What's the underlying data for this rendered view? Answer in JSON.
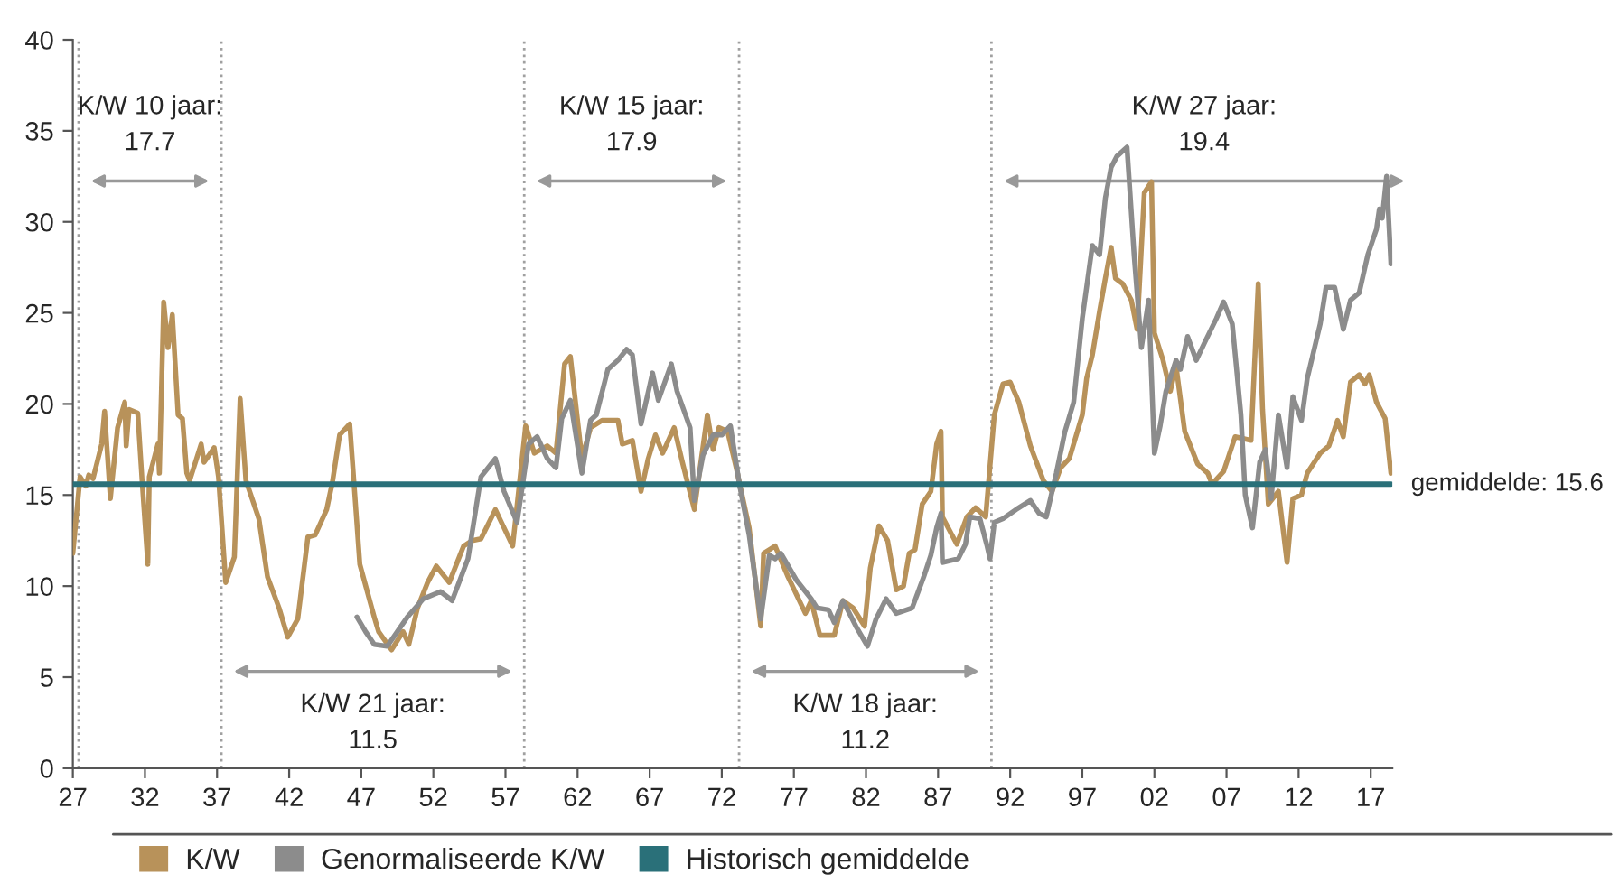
{
  "chart_data": {
    "type": "line",
    "xlim": [
      1927,
      2018.5
    ],
    "xticks": [
      {
        "value": 1927,
        "label": "27"
      },
      {
        "value": 1932,
        "label": "32"
      },
      {
        "value": 1937,
        "label": "37"
      },
      {
        "value": 1942,
        "label": "42"
      },
      {
        "value": 1947,
        "label": "47"
      },
      {
        "value": 1952,
        "label": "52"
      },
      {
        "value": 1957,
        "label": "57"
      },
      {
        "value": 1962,
        "label": "62"
      },
      {
        "value": 1967,
        "label": "67"
      },
      {
        "value": 1972,
        "label": "72"
      },
      {
        "value": 1977,
        "label": "77"
      },
      {
        "value": 1982,
        "label": "82"
      },
      {
        "value": 1987,
        "label": "87"
      },
      {
        "value": 1992,
        "label": "92"
      },
      {
        "value": 1997,
        "label": "97"
      },
      {
        "value": 2002,
        "label": "02"
      },
      {
        "value": 2007,
        "label": "07"
      },
      {
        "value": 2012,
        "label": "12"
      },
      {
        "value": 2017,
        "label": "17"
      }
    ],
    "ylim": [
      0,
      40
    ],
    "yticks": [
      0,
      5,
      10,
      15,
      20,
      25,
      30,
      35,
      40
    ],
    "grid": false,
    "legend": "bottom",
    "marker": "none",
    "line_style": "solid",
    "series": [
      {
        "name": "K/W",
        "color": "#b8925a",
        "x": [
          1927.0,
          1927.5,
          1927.9,
          1928.1,
          1928.4,
          1929.0,
          1929.2,
          1929.6,
          1930.1,
          1930.6,
          1930.7,
          1930.9,
          1931.5,
          1931.8,
          1932.2,
          1932.3,
          1932.9,
          1933.0,
          1933.3,
          1933.6,
          1933.9,
          1934.3,
          1934.6,
          1934.9,
          1935.1,
          1935.9,
          1936.1,
          1936.8,
          1937.1,
          1937.6,
          1938.2,
          1938.6,
          1939.0,
          1939.9,
          1940.5,
          1941.3,
          1941.9,
          1942.6,
          1943.3,
          1943.8,
          1944.6,
          1945.0,
          1945.5,
          1946.2,
          1946.9,
          1947.9,
          1948.2,
          1949.1,
          1949.9,
          1950.3,
          1950.9,
          1951.6,
          1952.2,
          1953.1,
          1954.1,
          1954.7,
          1955.3,
          1956.3,
          1956.9,
          1957.5,
          1958.4,
          1959.0,
          1959.9,
          1960.5,
          1961.1,
          1961.5,
          1962.3,
          1962.9,
          1963.7,
          1964.8,
          1965.1,
          1965.8,
          1966.4,
          1966.9,
          1967.4,
          1967.9,
          1968.7,
          1969.3,
          1970.1,
          1971.0,
          1971.4,
          1971.8,
          1972.4,
          1973.0,
          1973.9,
          1974.7,
          1974.9,
          1975.7,
          1976.6,
          1977.8,
          1978.2,
          1978.8,
          1979.8,
          1980.4,
          1981.1,
          1981.9,
          1982.3,
          1982.9,
          1983.5,
          1984.1,
          1984.6,
          1985.0,
          1985.4,
          1985.9,
          1986.5,
          1986.9,
          1987.2,
          1987.3,
          1988.3,
          1989.0,
          1989.6,
          1990.3,
          1990.9,
          1991.5,
          1992.0,
          1992.6,
          1993.4,
          1994.3,
          1994.9,
          1995.5,
          1996.1,
          1997.0,
          1997.3,
          1997.7,
          1998.2,
          1998.6,
          1999.0,
          1999.3,
          1999.8,
          2000.4,
          2000.8,
          2001.3,
          2001.8,
          2002.0,
          2002.6,
          2003.1,
          2003.5,
          2004.1,
          2005.0,
          2005.7,
          2006.0,
          2006.8,
          2007.6,
          2008.7,
          2009.2,
          2009.5,
          2009.9,
          2010.6,
          2011.2,
          2011.6,
          2012.2,
          2012.6,
          2013.5,
          2014.1,
          2014.7,
          2015.1,
          2015.6,
          2016.2,
          2016.6,
          2016.9,
          2017.4,
          2018.0,
          2018.4
        ],
        "values": [
          11.8,
          16.0,
          15.5,
          16.1,
          15.9,
          17.8,
          19.6,
          14.8,
          18.7,
          20.1,
          17.7,
          19.7,
          19.5,
          15.8,
          11.2,
          16.0,
          17.8,
          16.2,
          25.6,
          23.1,
          24.9,
          19.4,
          19.2,
          16.2,
          15.8,
          17.8,
          16.8,
          17.6,
          16.0,
          10.2,
          11.6,
          20.3,
          15.8,
          13.7,
          10.5,
          8.8,
          7.2,
          8.2,
          12.7,
          12.8,
          14.2,
          15.7,
          18.3,
          18.9,
          11.2,
          8.3,
          7.5,
          6.5,
          7.5,
          6.8,
          8.8,
          10.2,
          11.1,
          10.2,
          12.2,
          12.5,
          12.6,
          14.2,
          13.2,
          12.2,
          18.8,
          17.3,
          17.7,
          17.3,
          22.2,
          22.6,
          17.0,
          18.7,
          19.1,
          19.1,
          17.8,
          18.0,
          15.2,
          17.0,
          18.3,
          17.3,
          18.7,
          16.7,
          14.2,
          19.4,
          17.5,
          18.7,
          18.5,
          16.5,
          13.2,
          7.8,
          11.8,
          12.2,
          10.5,
          8.5,
          9.2,
          7.3,
          7.3,
          9.2,
          8.8,
          7.8,
          11.0,
          13.3,
          12.5,
          9.8,
          10.0,
          11.8,
          12.0,
          14.5,
          15.2,
          17.8,
          18.5,
          13.8,
          12.3,
          13.8,
          14.3,
          13.8,
          19.4,
          21.1,
          21.2,
          20.1,
          17.7,
          15.8,
          15.2,
          16.5,
          17.0,
          19.4,
          21.4,
          22.7,
          25.1,
          26.9,
          28.6,
          26.9,
          26.6,
          25.7,
          24.1,
          31.6,
          32.2,
          23.9,
          22.4,
          20.7,
          22.1,
          18.5,
          16.7,
          16.2,
          15.6,
          16.3,
          18.2,
          18.0,
          26.6,
          19.7,
          14.5,
          15.2,
          11.3,
          14.8,
          15.0,
          16.2,
          17.3,
          17.7,
          19.1,
          18.2,
          21.2,
          21.6,
          21.1,
          21.6,
          20.1,
          19.2,
          16.2
        ]
      },
      {
        "name": "Genormaliseerde K/W",
        "color": "#8c8c8c",
        "x": [
          1946.7,
          1947.3,
          1947.9,
          1948.8,
          1949.5,
          1950.2,
          1951.3,
          1952.5,
          1953.3,
          1954.4,
          1955.3,
          1956.3,
          1956.9,
          1957.8,
          1958.6,
          1959.2,
          1959.9,
          1960.5,
          1960.9,
          1961.5,
          1962.3,
          1962.9,
          1963.3,
          1964.1,
          1964.8,
          1965.4,
          1965.8,
          1966.4,
          1967.2,
          1967.6,
          1968.5,
          1968.9,
          1969.8,
          1970.1,
          1970.7,
          1971.4,
          1972.0,
          1972.6,
          1973.2,
          1973.9,
          1974.7,
          1975.3,
          1975.7,
          1976.1,
          1977.2,
          1978.2,
          1978.6,
          1979.4,
          1979.8,
          1980.4,
          1981.3,
          1982.1,
          1982.7,
          1983.4,
          1984.1,
          1985.2,
          1986.0,
          1986.5,
          1986.9,
          1987.2,
          1987.3,
          1988.4,
          1988.9,
          1989.2,
          1989.9,
          1990.4,
          1990.6,
          1990.9,
          1991.5,
          1992.4,
          1993.4,
          1994.0,
          1994.5,
          1995.2,
          1995.8,
          1996.4,
          1997.0,
          1997.7,
          1998.2,
          1998.6,
          1999.0,
          1999.4,
          2000.1,
          2000.6,
          2001.1,
          2001.6,
          2002.0,
          2002.4,
          2002.8,
          2003.5,
          2003.8,
          2004.3,
          2004.9,
          2005.5,
          2006.3,
          2006.8,
          2007.4,
          2008.0,
          2008.3,
          2008.8,
          2009.3,
          2009.7,
          2010.1,
          2010.6,
          2011.2,
          2011.6,
          2012.2,
          2012.6,
          2013.5,
          2013.9,
          2014.5,
          2015.1,
          2015.6,
          2016.2,
          2016.8,
          2017.4,
          2017.6,
          2017.8,
          2018.1,
          2018.4
        ],
        "values": [
          8.3,
          7.5,
          6.8,
          6.7,
          7.5,
          8.3,
          9.3,
          9.7,
          9.2,
          11.5,
          16.0,
          17.0,
          15.2,
          13.5,
          17.8,
          18.2,
          17.0,
          16.5,
          19.2,
          20.2,
          16.2,
          19.1,
          19.4,
          21.9,
          22.4,
          23.0,
          22.7,
          18.9,
          21.7,
          20.2,
          22.2,
          20.7,
          18.7,
          14.7,
          17.2,
          18.3,
          18.3,
          18.8,
          15.7,
          12.8,
          8.2,
          11.7,
          11.5,
          11.8,
          10.3,
          9.3,
          8.8,
          8.7,
          8.0,
          9.2,
          7.8,
          6.7,
          8.2,
          9.3,
          8.5,
          8.8,
          10.5,
          11.7,
          13.2,
          14.0,
          11.3,
          11.5,
          12.3,
          13.8,
          13.7,
          12.2,
          11.5,
          13.5,
          13.7,
          14.2,
          14.7,
          14.0,
          13.8,
          16.2,
          18.5,
          20.1,
          24.7,
          28.7,
          28.2,
          31.3,
          33.0,
          33.6,
          34.1,
          28.1,
          23.1,
          25.7,
          17.3,
          18.8,
          20.7,
          22.4,
          21.9,
          23.7,
          22.4,
          23.4,
          24.7,
          25.6,
          24.4,
          19.4,
          15.0,
          13.2,
          16.8,
          17.5,
          14.8,
          19.4,
          16.5,
          20.4,
          19.1,
          21.4,
          24.4,
          26.4,
          26.4,
          24.1,
          25.7,
          26.1,
          28.2,
          29.6,
          30.7,
          30.2,
          32.5,
          27.7
        ]
      },
      {
        "name": "Historisch gemiddelde",
        "color": "#2a7079",
        "x": [
          1927,
          2018.4
        ],
        "values": [
          15.6,
          15.6
        ]
      }
    ],
    "ref_lines": [
      {
        "axis": "x",
        "value": 1927.4,
        "color": "#a0a0a0",
        "line_style": "dotted"
      },
      {
        "axis": "x",
        "value": 1937.3,
        "color": "#a0a0a0",
        "line_style": "dotted"
      },
      {
        "axis": "x",
        "value": 1958.3,
        "color": "#a0a0a0",
        "line_style": "dotted"
      },
      {
        "axis": "x",
        "value": 1973.2,
        "color": "#a0a0a0",
        "line_style": "dotted"
      },
      {
        "axis": "x",
        "value": 1990.7,
        "color": "#a0a0a0",
        "line_style": "dotted"
      }
    ],
    "annotations": [
      "K/W 10 jaar:\n17.7",
      "K/W 21 jaar:\n11.5",
      "K/W 15 jaar:\n17.9",
      "K/W 18 jaar:\n11.2",
      "K/W 27 jaar:\n19.4",
      "gemiddelde: 15.6"
    ]
  }
}
